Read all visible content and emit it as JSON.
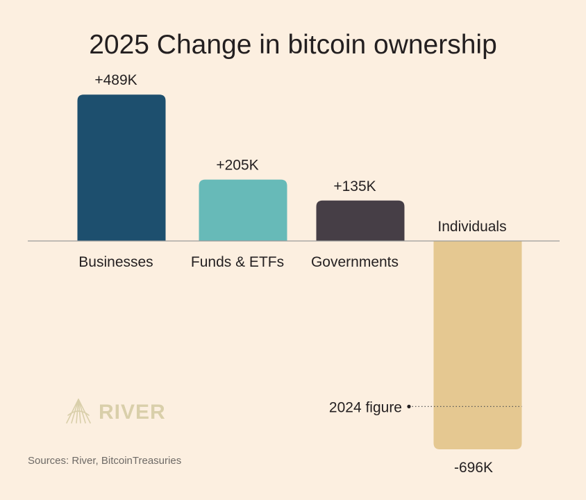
{
  "chart_data": {
    "type": "bar",
    "title": "2025 Change in bitcoin ownership",
    "categories": [
      "Businesses",
      "Funds & ETFs",
      "Governments",
      "Individuals"
    ],
    "values": [
      489,
      205,
      135,
      -696
    ],
    "value_labels": [
      "+489K",
      "+205K",
      "+135K",
      "-696K"
    ],
    "colors": [
      "#1d4f6e",
      "#67bab8",
      "#463e46",
      "#e5c891"
    ],
    "unit": "K",
    "ylim": [
      -696,
      489
    ],
    "grid": false,
    "reference": {
      "category": "Individuals",
      "label": "2024 figure",
      "value": -553
    }
  },
  "source_text": "Sources: River, BitcoinTreasuries",
  "logo": {
    "text": "RIVER",
    "color": "#d9cfaa"
  },
  "colors": {
    "background": "#fcefe0",
    "baseline": "#9a9a9a",
    "text": "#231f20"
  }
}
